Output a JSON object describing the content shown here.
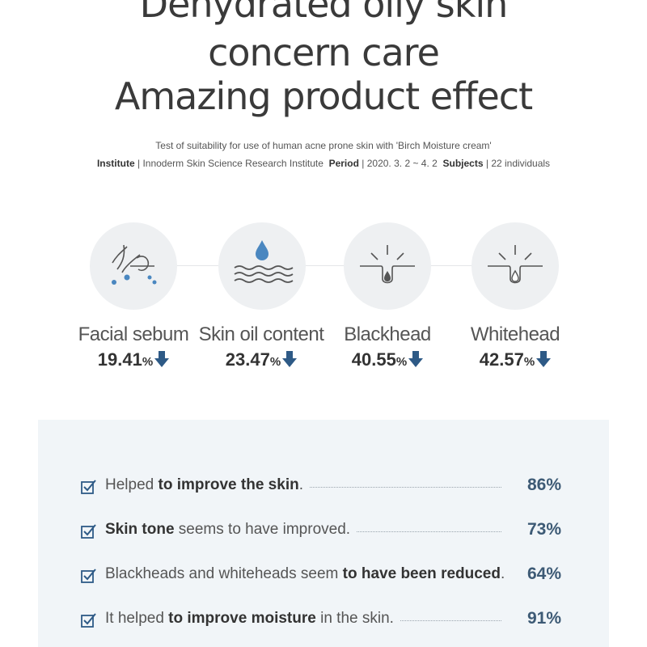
{
  "title": {
    "line1": "Dehydrated oily skin",
    "line2": "concern care",
    "line3": "Amazing product effect"
  },
  "subtitle": "Test of suitability for use of human acne prone skin with 'Birch Moisture cream'",
  "meta": {
    "institute_label": "Institute",
    "institute_value": "Innoderm Skin Science Research Institute",
    "period_label": "Period",
    "period_value": "2020. 3. 2 ~ 4. 2",
    "subjects_label": "Subjects",
    "subjects_value": "22 individuals",
    "separator": "|"
  },
  "metrics": [
    {
      "label": "Facial sebum",
      "value": "19.41",
      "unit": "%",
      "icon": "hair-follicle-icon"
    },
    {
      "label": "Skin oil content",
      "value": "23.47",
      "unit": "%",
      "icon": "water-drop-wave-icon"
    },
    {
      "label": "Blackhead",
      "value": "40.55",
      "unit": "%",
      "icon": "blackhead-pore-icon"
    },
    {
      "label": "Whitehead",
      "value": "42.57",
      "unit": "%",
      "icon": "whitehead-pore-icon"
    }
  ],
  "survey": [
    {
      "pre": "Helped ",
      "bold": "to improve the skin",
      "post": ".",
      "value": "86%"
    },
    {
      "pre": "",
      "bold": "Skin tone",
      "post": " seems to have improved.",
      "value": "73%"
    },
    {
      "pre": "Blackheads and whiteheads seem ",
      "bold": "to have been reduced",
      "post": ".",
      "value": "64%"
    },
    {
      "pre": "It helped ",
      "bold": "to improve moisture",
      "post": " in the skin.",
      "value": "91%"
    }
  ],
  "colors": {
    "accent_blue": "#2e5a86",
    "circle_bg": "#eef0f2",
    "panel_bg": "#f1f5f8",
    "value_text": "#3d5a75"
  }
}
